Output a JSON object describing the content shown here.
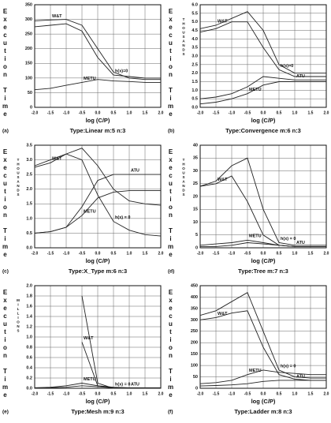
{
  "chart_data": [
    {
      "type": "line",
      "panel": "(a)",
      "subtitle": "Type:Linear m:5 n:3",
      "y_label": "Execution Time",
      "x_label": "log (C/P)",
      "x": [
        -2,
        -1.5,
        -1,
        -0.5,
        0,
        0.5,
        1,
        1.5,
        2
      ],
      "xlim": [
        -2,
        2
      ],
      "xticks": [
        {
          "value": -2,
          "label": "-2.0"
        },
        {
          "value": -1.5,
          "label": "-1.5"
        },
        {
          "value": -1,
          "label": "-1.0"
        },
        {
          "value": -0.5,
          "label": "-0.5"
        },
        {
          "value": 0,
          "label": "0.0"
        },
        {
          "value": 0.5,
          "label": "0.5"
        },
        {
          "value": 1,
          "label": "1.0"
        },
        {
          "value": 1.5,
          "label": "1.5"
        },
        {
          "value": 2,
          "label": "2.0"
        }
      ],
      "ylim": [
        0,
        350
      ],
      "yticks": [
        0,
        50,
        100,
        150,
        200,
        250,
        300,
        350
      ],
      "grid": true,
      "series": [
        {
          "name": "W&T",
          "color": "#222",
          "values": [
            295,
            298,
            300,
            280,
            200,
            120,
            100,
            95,
            95
          ]
        },
        {
          "name": "h(x)=0",
          "color": "#222",
          "values": [
            275,
            280,
            285,
            260,
            170,
            110,
            105,
            100,
            100
          ]
        },
        {
          "name": "METU",
          "color": "#222",
          "values": [
            60,
            65,
            75,
            85,
            95,
            90,
            88,
            85,
            85
          ]
        }
      ]
    },
    {
      "type": "line",
      "panel": "(b)",
      "subtitle": "Type:Convergence m:6 n:3",
      "y_label": "Execution Time",
      "unit": "THOUSANDS",
      "x_label": "log (C/P)",
      "x": [
        -2,
        -1.5,
        -1,
        -0.5,
        0,
        0.5,
        1,
        1.5,
        2
      ],
      "xlim": [
        -2,
        2
      ],
      "xticks": [
        {
          "value": -2,
          "label": "-2.0"
        },
        {
          "value": -1.5,
          "label": "-1.5"
        },
        {
          "value": -1,
          "label": "-1.0"
        },
        {
          "value": -0.5,
          "label": "-0.5"
        },
        {
          "value": 0,
          "label": "0.0"
        },
        {
          "value": 0.5,
          "label": "0.5"
        },
        {
          "value": 1,
          "label": "1.0"
        },
        {
          "value": 1.5,
          "label": "1.5"
        },
        {
          "value": 2,
          "label": "2.0"
        }
      ],
      "ylim": [
        0,
        6
      ],
      "yticks": [
        {
          "value": 0,
          "label": "0.0"
        },
        {
          "value": 0.5,
          "label": "0.5"
        },
        {
          "value": 1,
          "label": "1.0"
        },
        {
          "value": 1.5,
          "label": "1.5"
        },
        {
          "value": 2,
          "label": "2.0"
        },
        {
          "value": 2.5,
          "label": "2.5"
        },
        {
          "value": 3,
          "label": "3.0"
        },
        {
          "value": 3.5,
          "label": "3.5"
        },
        {
          "value": 4,
          "label": "4.0"
        },
        {
          "value": 4.5,
          "label": "4.5"
        },
        {
          "value": 5,
          "label": "5.0"
        },
        {
          "value": 5.5,
          "label": "5.5"
        },
        {
          "value": 6,
          "label": "6.0"
        }
      ],
      "grid": true,
      "series": [
        {
          "name": "W&T",
          "color": "#222",
          "values": [
            4.6,
            4.8,
            5.2,
            5.6,
            4.5,
            2.5,
            2.0,
            2.0,
            2.0
          ]
        },
        {
          "name": "h(x)=0",
          "color": "#222",
          "values": [
            4.4,
            4.6,
            5.0,
            5.0,
            3.5,
            2.2,
            1.8,
            1.8,
            1.8
          ]
        },
        {
          "name": "METU",
          "color": "#222",
          "values": [
            0.2,
            0.3,
            0.5,
            0.8,
            1.3,
            1.5,
            1.5,
            1.5,
            1.5
          ]
        },
        {
          "name": "ATU",
          "color": "#222",
          "values": [
            0.5,
            0.6,
            0.8,
            1.2,
            1.8,
            1.7,
            1.6,
            1.6,
            1.6
          ]
        }
      ]
    },
    {
      "type": "line",
      "panel": "(c)",
      "subtitle": "Type:X_Type m:6 n:3",
      "y_label": "Execution Time",
      "unit": "THOUSANDS",
      "x_label": "log (C/P)",
      "x": [
        -2,
        -1.5,
        -1,
        -0.5,
        0,
        0.5,
        1,
        1.5,
        2
      ],
      "xlim": [
        -2,
        2
      ],
      "xticks": [
        {
          "value": -2,
          "label": "-2.0"
        },
        {
          "value": -1.5,
          "label": "-1.5"
        },
        {
          "value": -1,
          "label": "-1.0"
        },
        {
          "value": -0.5,
          "label": "-0.5"
        },
        {
          "value": 0,
          "label": "0.0"
        },
        {
          "value": 0.5,
          "label": "0.5"
        },
        {
          "value": 1,
          "label": "1.0"
        },
        {
          "value": 1.5,
          "label": "1.5"
        },
        {
          "value": 2,
          "label": "2.0"
        }
      ],
      "ylim": [
        0,
        3.5
      ],
      "yticks": [
        {
          "value": 0,
          "label": "0.0"
        },
        {
          "value": 0.5,
          "label": "0.5"
        },
        {
          "value": 1,
          "label": "1.0"
        },
        {
          "value": 1.5,
          "label": "1.5"
        },
        {
          "value": 2,
          "label": "2.0"
        },
        {
          "value": 2.5,
          "label": "2.5"
        },
        {
          "value": 3,
          "label": "3.0"
        },
        {
          "value": 3.5,
          "label": "3.5"
        }
      ],
      "grid": true,
      "series": [
        {
          "name": "W&T",
          "color": "#222",
          "values": [
            2.75,
            2.9,
            3.2,
            3.4,
            2.8,
            2.0,
            1.6,
            1.5,
            1.45
          ]
        },
        {
          "name": "h(x) = 0",
          "color": "#222",
          "values": [
            2.8,
            3.0,
            3.2,
            3.0,
            1.8,
            0.9,
            0.6,
            0.45,
            0.4
          ]
        },
        {
          "name": "METU",
          "color": "#222",
          "values": [
            0.5,
            0.55,
            0.7,
            1.1,
            1.7,
            1.9,
            1.95,
            1.95,
            1.95
          ]
        },
        {
          "name": "ATU",
          "color": "#222",
          "values": [
            0.5,
            0.55,
            0.7,
            1.4,
            2.3,
            2.5,
            2.5,
            2.5,
            2.5
          ]
        }
      ]
    },
    {
      "type": "line",
      "panel": "(d)",
      "subtitle": "Type:Tree m:7 n:3",
      "y_label": "Execution Time",
      "unit": "THOUSANDS",
      "x_label": "log (C/P)",
      "x": [
        -2,
        -1.5,
        -1,
        -0.5,
        0,
        0.5,
        1,
        1.5,
        2
      ],
      "xlim": [
        -2,
        2
      ],
      "xticks": [
        {
          "value": -2,
          "label": "-2.0"
        },
        {
          "value": -1.5,
          "label": "-1.5"
        },
        {
          "value": -1,
          "label": "-1.0"
        },
        {
          "value": -0.5,
          "label": "-0.5"
        },
        {
          "value": 0,
          "label": "0.0"
        },
        {
          "value": 0.5,
          "label": "0.5"
        },
        {
          "value": 1,
          "label": "1.0"
        },
        {
          "value": 1.5,
          "label": "1.5"
        },
        {
          "value": 2,
          "label": "2.0"
        }
      ],
      "ylim": [
        0,
        40
      ],
      "yticks": [
        0,
        5,
        10,
        15,
        20,
        25,
        30,
        35,
        40
      ],
      "grid": true,
      "series": [
        {
          "name": "W&T",
          "color": "#222",
          "values": [
            24,
            25,
            28,
            18,
            5,
            1,
            0.5,
            0.5,
            0.5
          ]
        },
        {
          "name": "h(x) = 0",
          "color": "#222",
          "values": [
            24,
            26,
            32,
            35,
            15,
            2,
            1,
            1,
            1
          ]
        },
        {
          "name": "METU",
          "color": "#222",
          "values": [
            1,
            1.5,
            2,
            3,
            2,
            1,
            0.5,
            0.5,
            0.5
          ]
        },
        {
          "name": "ATU",
          "color": "#222",
          "values": [
            0.5,
            0.5,
            1,
            2,
            1.5,
            1,
            0.5,
            0.5,
            0.5
          ]
        }
      ]
    },
    {
      "type": "line",
      "panel": "(e)",
      "subtitle": "Type:Mesh m:9 n:3",
      "y_label": "Execution Time",
      "unit": "MILLIONS",
      "x_label": "log (C/P)",
      "x": [
        -2,
        -1.5,
        -1,
        -0.5,
        0,
        0.5,
        1,
        1.5,
        2
      ],
      "xlim": [
        -2,
        2
      ],
      "xticks": [
        {
          "value": -2,
          "label": "-2.0"
        },
        {
          "value": -1.5,
          "label": "-1.5"
        },
        {
          "value": -1,
          "label": "-1.0"
        },
        {
          "value": -0.5,
          "label": "-0.5"
        },
        {
          "value": 0,
          "label": "0.0"
        },
        {
          "value": 0.5,
          "label": "0.5"
        },
        {
          "value": 1,
          "label": "1.0"
        },
        {
          "value": 1.5,
          "label": "1.5"
        },
        {
          "value": 2,
          "label": "2.0"
        }
      ],
      "ylim": [
        0,
        2
      ],
      "yticks": [
        {
          "value": 0,
          "label": "0.0"
        },
        {
          "value": 0.2,
          "label": "0.2"
        },
        {
          "value": 0.4,
          "label": "0.4"
        },
        {
          "value": 0.6,
          "label": "0.6"
        },
        {
          "value": 0.8,
          "label": "0.8"
        },
        {
          "value": 1,
          "label": "1.0"
        },
        {
          "value": 1.2,
          "label": "1.2"
        },
        {
          "value": 1.4,
          "label": "1.4"
        },
        {
          "value": 1.6,
          "label": "1.6"
        },
        {
          "value": 1.8,
          "label": "1.8"
        },
        {
          "value": 2,
          "label": "2.0"
        }
      ],
      "grid": true,
      "series": [
        {
          "name": "W&T",
          "color": "#222",
          "values": [
            null,
            null,
            null,
            0.9,
            0.05,
            0,
            0,
            0,
            0
          ]
        },
        {
          "name": "h(x) = 0",
          "color": "#222",
          "values": [
            null,
            null,
            null,
            1.8,
            0.1,
            0,
            0,
            0,
            0
          ]
        },
        {
          "name": "METU",
          "color": "#222",
          "values": [
            0.01,
            0.02,
            0.05,
            0.1,
            0.05,
            0.02,
            0.01,
            0.01,
            0.01
          ]
        },
        {
          "name": "ATU",
          "color": "#222",
          "values": [
            0,
            0.01,
            0.02,
            0.05,
            0.03,
            0.01,
            0,
            0,
            0
          ]
        }
      ]
    },
    {
      "type": "line",
      "panel": "(f)",
      "subtitle": "Type:Ladder m:8 n:3",
      "y_label": "Execution Time",
      "x_label": "log (C/P)",
      "x": [
        -2,
        -1.5,
        -1,
        -0.5,
        0,
        0.5,
        1,
        1.5,
        2
      ],
      "xlim": [
        -2,
        2
      ],
      "xticks": [
        {
          "value": -2,
          "label": "-2.0"
        },
        {
          "value": -1.5,
          "label": "-1.5"
        },
        {
          "value": -1,
          "label": "-1.0"
        },
        {
          "value": -0.5,
          "label": "-0.5"
        },
        {
          "value": 0,
          "label": "0.0"
        },
        {
          "value": 0.5,
          "label": "0.5"
        },
        {
          "value": 1,
          "label": "1.0"
        },
        {
          "value": 1.5,
          "label": "1.5"
        },
        {
          "value": 2,
          "label": "2.0"
        }
      ],
      "ylim": [
        0,
        450
      ],
      "yticks": [
        0,
        50,
        100,
        150,
        200,
        250,
        300,
        350,
        400,
        450
      ],
      "grid": true,
      "series": [
        {
          "name": "W&T",
          "color": "#222",
          "values": [
            300,
            310,
            330,
            340,
            180,
            60,
            40,
            35,
            35
          ]
        },
        {
          "name": "h(x) = 0",
          "color": "#222",
          "values": [
            320,
            340,
            380,
            420,
            250,
            80,
            50,
            45,
            45
          ]
        },
        {
          "name": "METU",
          "color": "#222",
          "values": [
            20,
            25,
            35,
            60,
            80,
            70,
            65,
            60,
            60
          ]
        },
        {
          "name": "ATU",
          "color": "#222",
          "values": [
            10,
            12,
            15,
            20,
            30,
            35,
            35,
            35,
            35
          ]
        }
      ]
    }
  ]
}
